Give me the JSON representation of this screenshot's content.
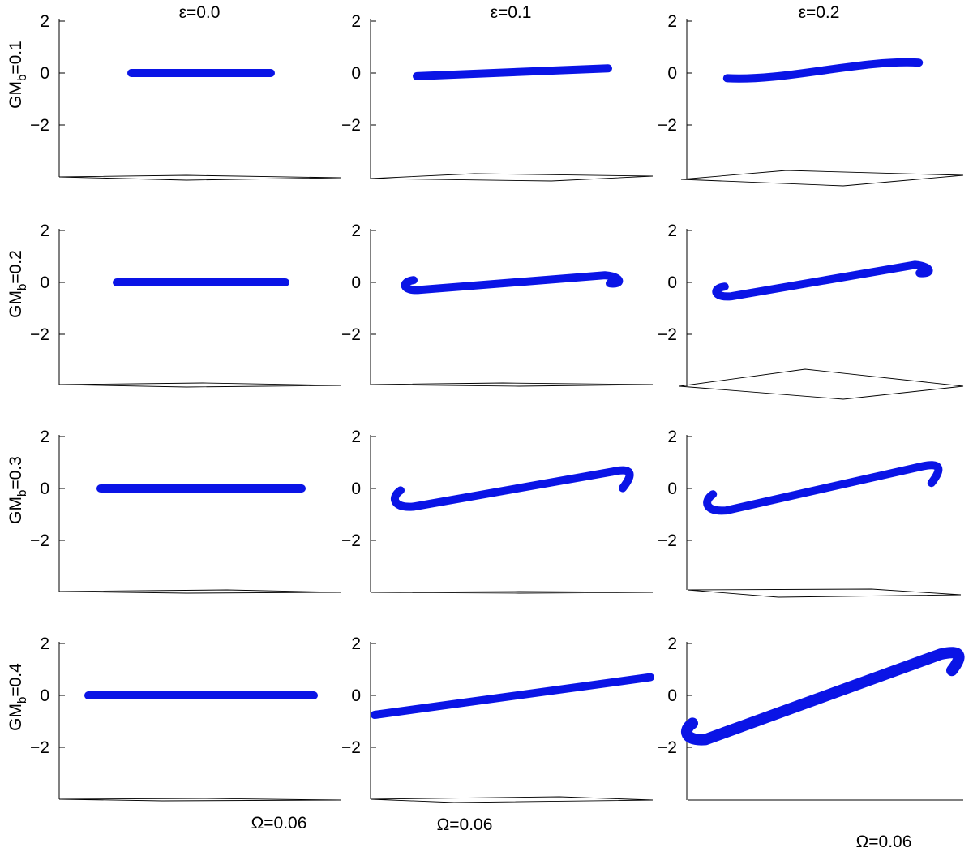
{
  "chart_data": {
    "type": "line",
    "layout": "4x3 grid of 3D trajectory projections",
    "series_color": "#0a14e6",
    "yticks": [
      2,
      0,
      -2
    ],
    "ytick_labels": [
      "2",
      "0",
      "−2"
    ],
    "ylim": [
      -4,
      2
    ],
    "columns": [
      {
        "label": "ε=0.0",
        "epsilon": 0.0
      },
      {
        "label": "ε=0.1",
        "epsilon": 0.1
      },
      {
        "label": "ε=0.2",
        "epsilon": 0.2
      }
    ],
    "rows": [
      {
        "label_main": "GM",
        "label_sub": "b",
        "label_value": "=0.1",
        "GMb": 0.1
      },
      {
        "label_main": "GM",
        "label_sub": "b",
        "label_value": "=0.2",
        "GMb": 0.2
      },
      {
        "label_main": "GM",
        "label_sub": "b",
        "label_value": "=0.3",
        "GMb": 0.3
      },
      {
        "label_main": "GM",
        "label_sub": "b",
        "label_value": "=0.4",
        "GMb": 0.4
      }
    ],
    "omega_labels": [
      "Ω=0.06",
      "Ω=0.06",
      "Ω=0.06"
    ],
    "panels": [
      {
        "row": 0,
        "col": 0,
        "x": [
          -0.5,
          0.5
        ],
        "y": [
          0.0,
          0.0
        ],
        "hooks": "none"
      },
      {
        "row": 0,
        "col": 1,
        "x": [
          -0.5,
          0.5
        ],
        "y": [
          -0.12,
          0.18
        ],
        "hooks": "none"
      },
      {
        "row": 0,
        "col": 2,
        "x": [
          -0.5,
          0.5
        ],
        "y": [
          -0.2,
          0.4
        ],
        "hooks": "slight"
      },
      {
        "row": 1,
        "col": 0,
        "x": [
          -0.5,
          0.5
        ],
        "y": [
          0.0,
          0.0
        ],
        "hooks": "none"
      },
      {
        "row": 1,
        "col": 1,
        "x": [
          -0.5,
          0.5
        ],
        "y": [
          -0.1,
          0.15
        ],
        "hooks": "curl"
      },
      {
        "row": 1,
        "col": 2,
        "x": [
          -0.5,
          0.5
        ],
        "y": [
          -0.35,
          0.55
        ],
        "hooks": "curl"
      },
      {
        "row": 2,
        "col": 0,
        "x": [
          -0.5,
          0.5
        ],
        "y": [
          0.0,
          0.0
        ],
        "hooks": "none"
      },
      {
        "row": 2,
        "col": 1,
        "x": [
          -0.5,
          0.5
        ],
        "y": [
          -0.45,
          0.45
        ],
        "hooks": "hook"
      },
      {
        "row": 2,
        "col": 2,
        "x": [
          -0.5,
          0.5
        ],
        "y": [
          -0.6,
          0.65
        ],
        "hooks": "hook"
      },
      {
        "row": 3,
        "col": 0,
        "x": [
          -0.5,
          0.5
        ],
        "y": [
          0.0,
          0.0
        ],
        "hooks": "none"
      },
      {
        "row": 3,
        "col": 1,
        "x": [
          -0.5,
          0.5
        ],
        "y": [
          -0.75,
          0.7
        ],
        "hooks": "none"
      },
      {
        "row": 3,
        "col": 2,
        "x": [
          -0.5,
          0.5
        ],
        "y": [
          -1.45,
          1.4
        ],
        "hooks": "hook"
      }
    ]
  }
}
